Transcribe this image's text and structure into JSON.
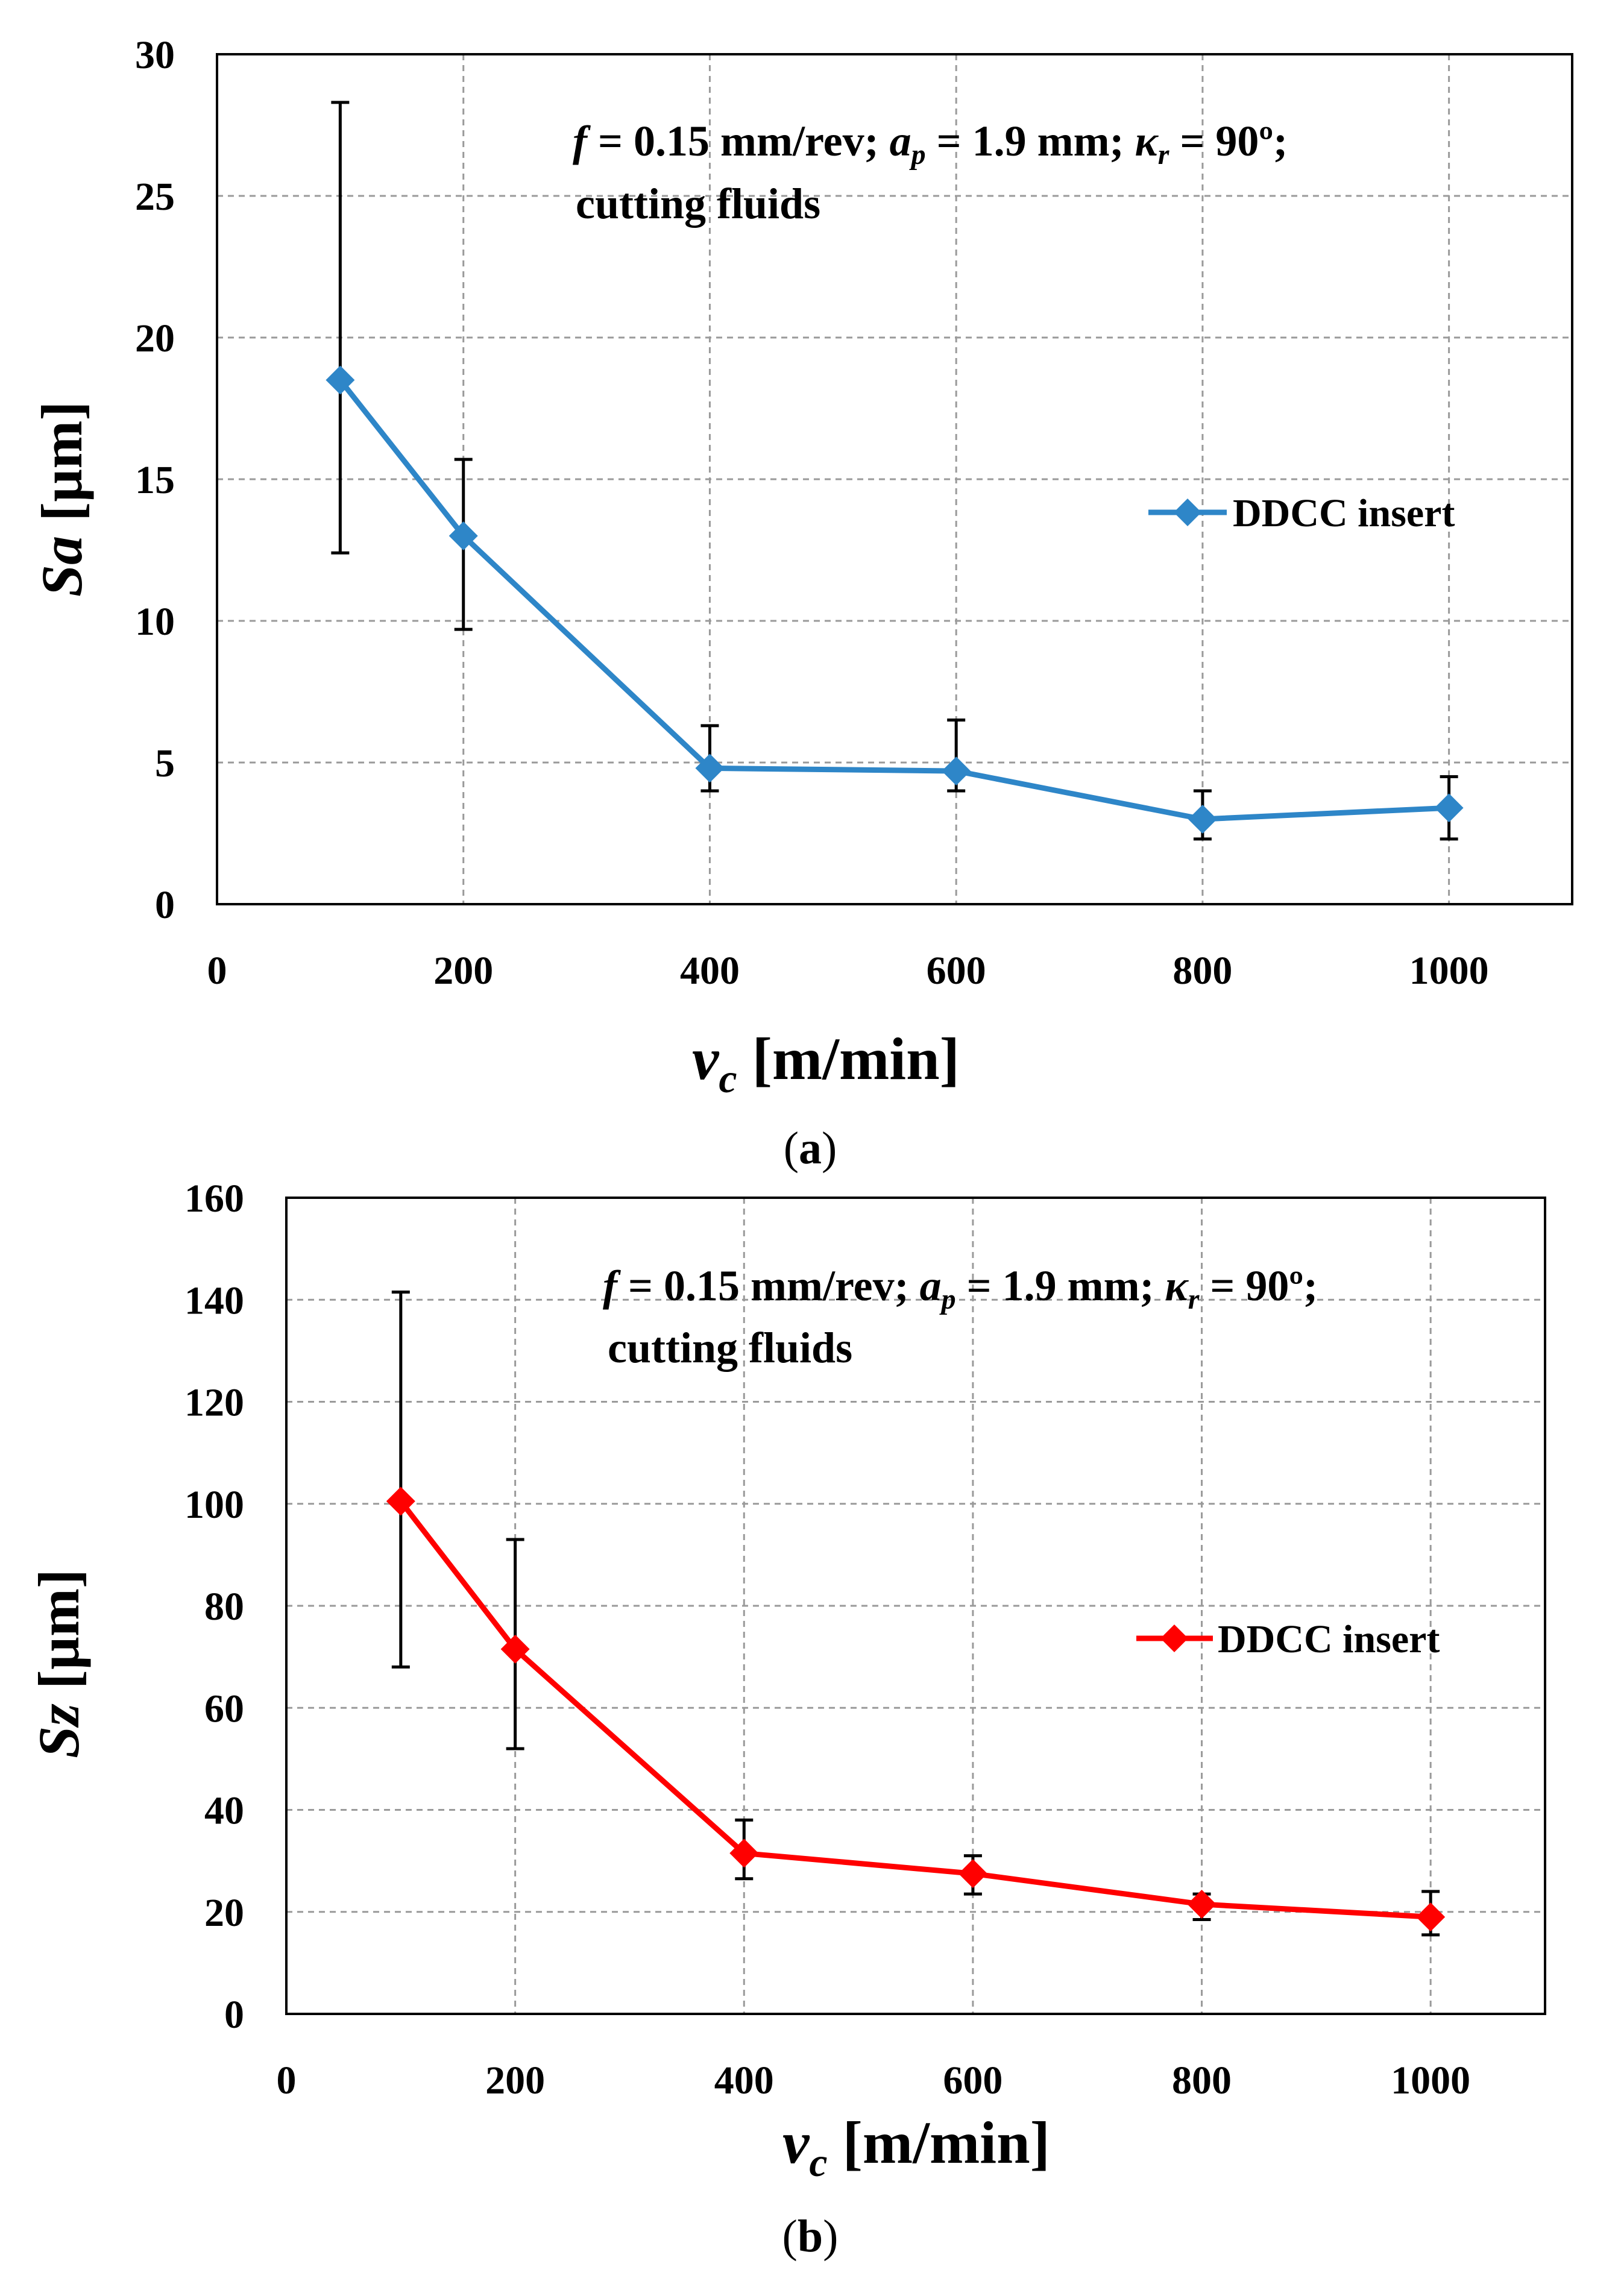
{
  "chart_data": [
    {
      "type": "line",
      "panel": "a",
      "caption_open": "(",
      "caption": "a",
      "caption_close": ")",
      "ylabel_symbol": "Sa",
      "ylabel_unit": " [µm]",
      "xlabel_symbol": "v",
      "xlabel_sub": "c",
      "xlabel_unit": " [m/min]",
      "xlim": [
        0,
        1100
      ],
      "ylim": [
        0,
        30
      ],
      "xticks": [
        0,
        200,
        400,
        600,
        800,
        1000
      ],
      "yticks": [
        0,
        5,
        10,
        15,
        20,
        25,
        30
      ],
      "grid": true,
      "color": "#2E86C8",
      "legend_position": "right",
      "series": [
        {
          "name": "DDCC insert",
          "x": [
            100,
            200,
            400,
            600,
            800,
            1000
          ],
          "y": [
            18.5,
            13.0,
            4.8,
            4.7,
            3.0,
            3.4
          ],
          "err_low": [
            12.4,
            9.7,
            4.0,
            4.0,
            2.3,
            2.3
          ],
          "err_high": [
            28.3,
            15.7,
            6.3,
            6.5,
            4.0,
            4.5
          ]
        }
      ],
      "annotation": {
        "f_sym": "f",
        "f_val": " = 0.15 mm/rev;  ",
        "ap_sym": "a",
        "ap_sub": "p",
        "ap_val": " = 1.9  mm; ",
        "kr_sym": "κ",
        "kr_sub": "r",
        "kr_val": " = 90º;",
        "line2": "cutting fluids"
      }
    },
    {
      "type": "line",
      "panel": "b",
      "caption_open": "(",
      "caption": "b",
      "caption_close": ")",
      "ylabel_symbol": "Sz",
      "ylabel_unit": " [µm]",
      "xlabel_symbol": "v",
      "xlabel_sub": "c",
      "xlabel_unit": " [m/min]",
      "xlim": [
        0,
        1100
      ],
      "ylim": [
        0,
        160
      ],
      "xticks": [
        0,
        200,
        400,
        600,
        800,
        1000
      ],
      "yticks": [
        0,
        20,
        40,
        60,
        80,
        100,
        120,
        140,
        160
      ],
      "grid": true,
      "color": "#FF0000",
      "legend_position": "right",
      "series": [
        {
          "name": "DDCC insert",
          "x": [
            100,
            200,
            400,
            600,
            800,
            1000
          ],
          "y": [
            100.5,
            71.5,
            31.5,
            27.5,
            21.5,
            19.0
          ],
          "err_low": [
            68.0,
            52.0,
            26.5,
            23.5,
            18.5,
            15.5
          ],
          "err_high": [
            141.5,
            93.0,
            38.0,
            31.0,
            23.5,
            24.0
          ]
        }
      ],
      "annotation": {
        "f_sym": "f",
        "f_val": " = 0.15 mm/rev;  ",
        "ap_sym": "a",
        "ap_sub": "p",
        "ap_val": " = 1.9  mm; ",
        "kr_sym": "κ",
        "kr_sub": "r",
        "kr_val": " = 90º;",
        "line2": "cutting fluids"
      }
    }
  ]
}
